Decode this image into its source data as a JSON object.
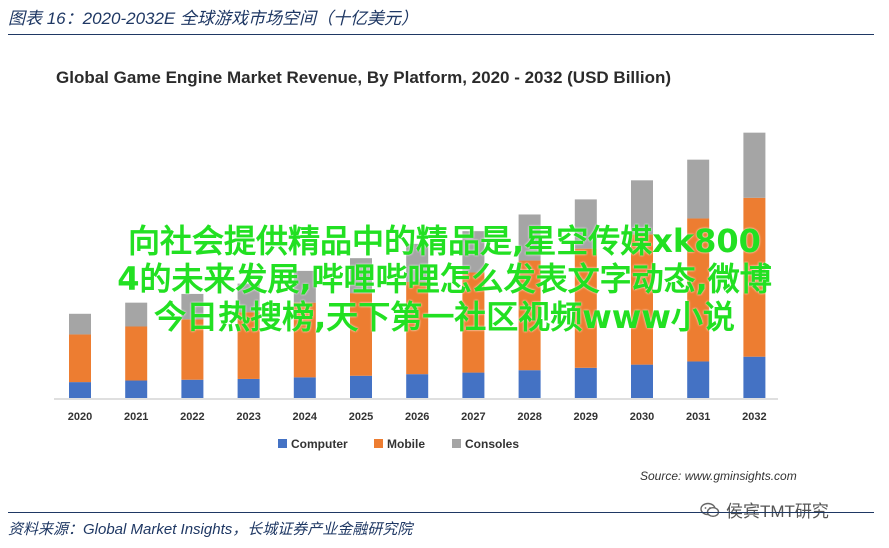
{
  "figure": {
    "title": "图表 16：2020-2032E 全球游戏市场空间（十亿美元）"
  },
  "chart_data": {
    "type": "bar",
    "stacked": true,
    "title": "Global Game Engine Market Revenue, By Platform, 2020 - 2032 (USD Billion)",
    "categories": [
      "2020",
      "2021",
      "2022",
      "2023",
      "2024",
      "2025",
      "2026",
      "2027",
      "2028",
      "2029",
      "2030",
      "2031",
      "2032"
    ],
    "series": [
      {
        "name": "Computer",
        "color": "#4472c4",
        "values": [
          1.0,
          1.1,
          1.15,
          1.2,
          1.3,
          1.4,
          1.5,
          1.6,
          1.75,
          1.9,
          2.1,
          2.3,
          2.6
        ]
      },
      {
        "name": "Mobile",
        "color": "#ed7d31",
        "values": [
          3.0,
          3.4,
          3.8,
          4.2,
          4.7,
          5.2,
          5.8,
          6.3,
          6.9,
          7.5,
          8.2,
          9.0,
          10.0
        ]
      },
      {
        "name": "Consoles",
        "color": "#a5a5a5",
        "values": [
          1.3,
          1.5,
          1.6,
          1.8,
          2.0,
          2.2,
          2.4,
          2.6,
          2.9,
          3.1,
          3.4,
          3.7,
          4.1
        ]
      }
    ],
    "ylim": [
      0,
      18
    ],
    "legend": "bottom",
    "grid": false
  },
  "chart_source": "Source: www.gminsights.com",
  "footer": {
    "source": "资料来源：Global Market Insights，长城证券产业金融研究院"
  },
  "overlay": {
    "lines": [
      "向社会提供精品中的精品是,星空传媒xk800",
      "4的未来发展,哔哩哔哩怎么发表文字动态,微博",
      "今日热搜榜,天下第一社区视频www小说"
    ],
    "color": "#22e022"
  },
  "watermark": {
    "text": "侯宾TMT研究",
    "icon": "wechat-icon"
  }
}
